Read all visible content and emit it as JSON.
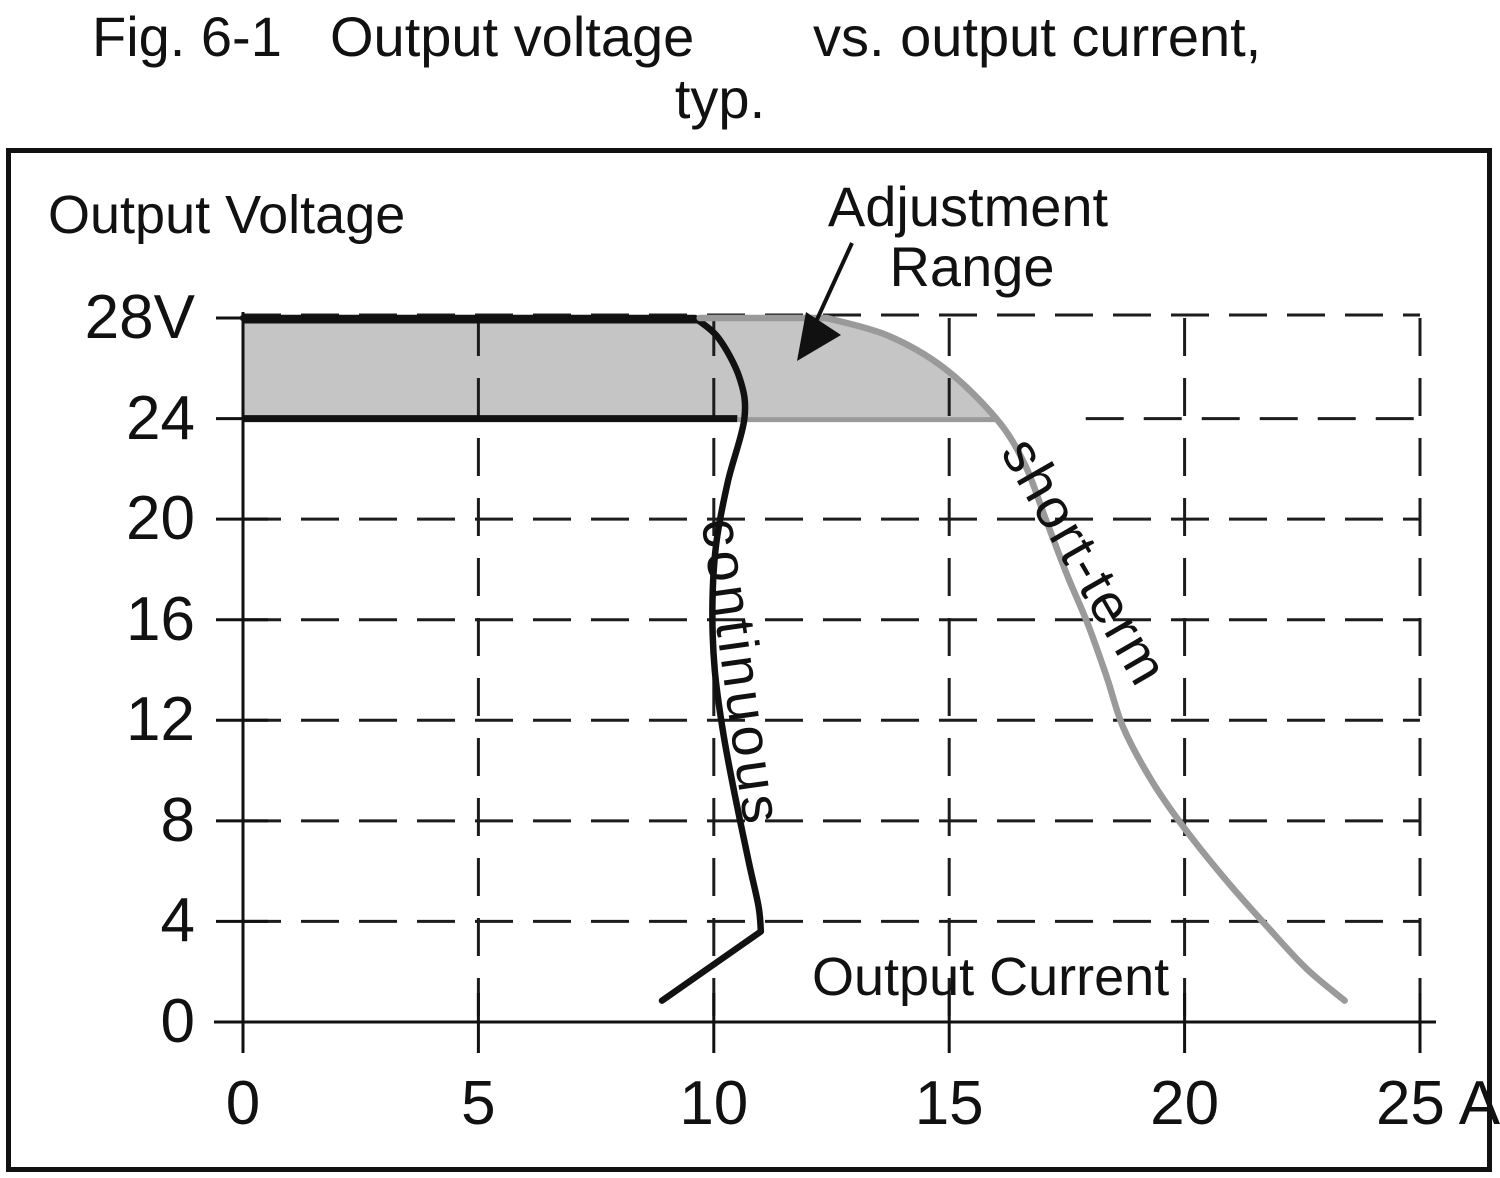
{
  "title": {
    "fig": "Fig. 6-1",
    "line1a": "Output voltage",
    "line1b": "vs. output current,",
    "line2": "typ."
  },
  "labels": {
    "y_axis": "Output Voltage",
    "x_axis": "Output Current",
    "adjustment_line1": "Adjustment",
    "adjustment_line2": "Range",
    "curve_continuous": "continuous",
    "curve_short_term": "short-term"
  },
  "colors": {
    "black": "#111111",
    "grid": "#1c1c1c",
    "gray_curve": "#9a9a9a",
    "gray_line_24v": "#9a9a9a",
    "shade": "#c5c5c5"
  },
  "chart_data": {
    "type": "line",
    "title": "Fig. 6-1 Output voltage vs. output current, typ.",
    "xlabel": "Output Current",
    "ylabel": "Output Voltage",
    "xlim": [
      0,
      25
    ],
    "ylim": [
      0,
      28
    ],
    "grid": "dashed",
    "legend_position": "none",
    "x_ticks": [
      {
        "label": "0",
        "value": 0
      },
      {
        "label": "5",
        "value": 5
      },
      {
        "label": "10",
        "value": 10
      },
      {
        "label": "15",
        "value": 15
      },
      {
        "label": "20",
        "value": 20
      },
      {
        "label": "25 A",
        "value": 25
      }
    ],
    "y_ticks": [
      {
        "label": "28V",
        "value": 28
      },
      {
        "label": "24",
        "value": 24
      },
      {
        "label": "20",
        "value": 20
      },
      {
        "label": "16",
        "value": 16
      },
      {
        "label": "12",
        "value": 12
      },
      {
        "label": "8",
        "value": 8
      },
      {
        "label": "4",
        "value": 4
      },
      {
        "label": "0",
        "value": 0
      }
    ],
    "series": [
      {
        "name": "continuous",
        "color": "#111111",
        "flat": [
          [
            0,
            28
          ],
          [
            9.6,
            28
          ]
        ],
        "curve": [
          [
            9.6,
            28
          ],
          [
            10.1,
            27.2
          ],
          [
            10.55,
            25.6
          ],
          [
            10.65,
            24
          ],
          [
            10.3,
            21.5
          ],
          [
            10.05,
            19
          ],
          [
            9.97,
            16.5
          ],
          [
            10.02,
            14
          ],
          [
            10.2,
            11.5
          ],
          [
            10.45,
            9
          ],
          [
            10.75,
            6.3
          ],
          [
            10.95,
            4.6
          ],
          [
            11.0,
            3.6
          ]
        ],
        "tail": [
          [
            11.0,
            3.6
          ],
          [
            8.9,
            0.85
          ]
        ]
      },
      {
        "name": "short-term",
        "color": "#9a9a9a",
        "flat": [
          [
            9.7,
            28
          ],
          [
            12.4,
            28
          ]
        ],
        "curve": [
          [
            12.4,
            28
          ],
          [
            13.7,
            27.3
          ],
          [
            14.9,
            26.0
          ],
          [
            16.0,
            24.0
          ],
          [
            16.6,
            22.2
          ],
          [
            17.05,
            20.0
          ],
          [
            17.5,
            17.8
          ],
          [
            17.95,
            15.8
          ],
          [
            18.35,
            13.7
          ],
          [
            18.7,
            11.7
          ],
          [
            19.3,
            9.6
          ],
          [
            20.0,
            7.7
          ],
          [
            20.9,
            5.6
          ],
          [
            21.8,
            3.7
          ],
          [
            22.6,
            2.1
          ],
          [
            23.4,
            0.85
          ]
        ],
        "tail": []
      }
    ],
    "adjustment_range": {
      "v_min": 24,
      "v_max": 28,
      "x_start": 0,
      "boundary_ends_at": [
        16,
        24
      ]
    },
    "thick_lines": {
      "v28_black": [
        [
          0,
          28
        ],
        [
          9.66,
          28
        ]
      ],
      "v24_black": [
        [
          0,
          24
        ],
        [
          10.5,
          24
        ]
      ],
      "v24_gray": [
        [
          10.5,
          24
        ],
        [
          16,
          24
        ]
      ],
      "v24_dash_right_from": 17.9
    }
  }
}
